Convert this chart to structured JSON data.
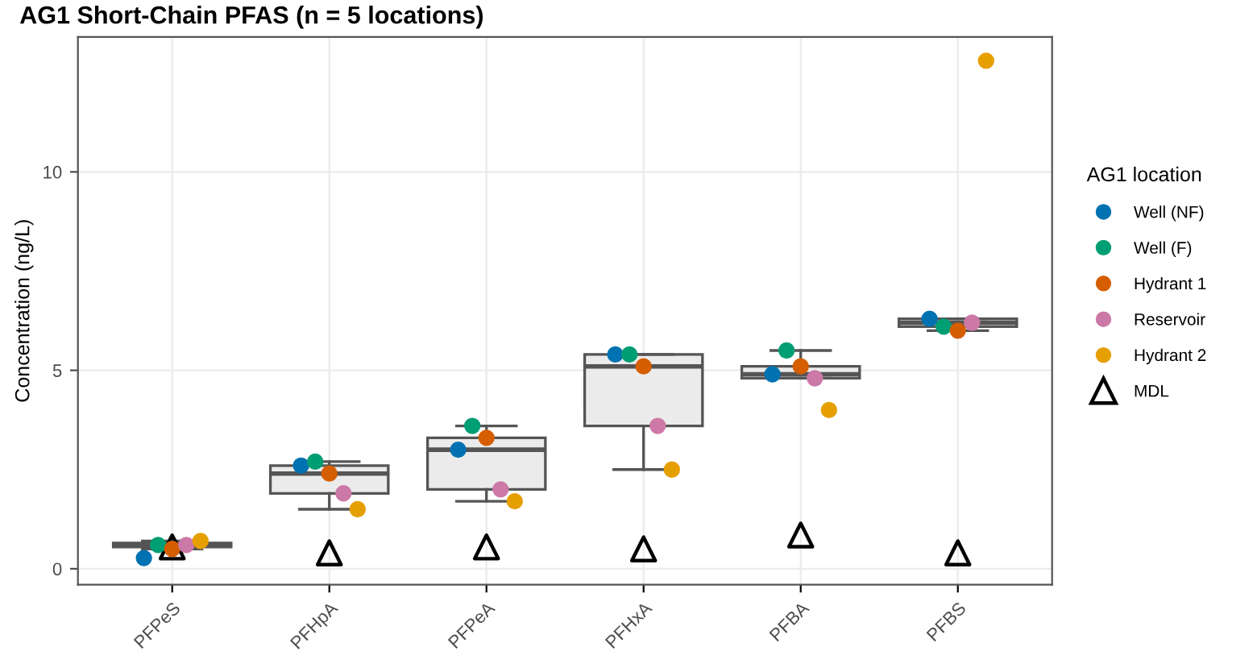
{
  "chart_data": {
    "type": "box",
    "title": "AG1 Short-Chain PFAS (n = 5 locations)",
    "ylabel": "Concentration (ng/L)",
    "legend_title": "AG1 location",
    "categories": [
      "PFPeS",
      "PFHpA",
      "PFPeA",
      "PFHxA",
      "PFBA",
      "PFBS"
    ],
    "boxes": [
      {
        "low": 0.5,
        "q1": 0.55,
        "median": 0.6,
        "q3": 0.65,
        "high": 0.7
      },
      {
        "low": 1.5,
        "q1": 1.9,
        "median": 2.4,
        "q3": 2.6,
        "high": 2.7
      },
      {
        "low": 1.7,
        "q1": 2.0,
        "median": 3.0,
        "q3": 3.3,
        "high": 3.6
      },
      {
        "low": 2.5,
        "q1": 3.6,
        "median": 5.1,
        "q3": 5.4,
        "high": 5.4
      },
      {
        "low": 4.8,
        "q1": 4.8,
        "median": 4.9,
        "q3": 5.1,
        "high": 5.5
      },
      {
        "low": 6.0,
        "q1": 6.1,
        "median": 6.2,
        "q3": 6.3,
        "high": 6.3
      }
    ],
    "series": [
      {
        "type": "scatter",
        "name": "Well (NF)",
        "color": "#0072b2",
        "marker": "circle",
        "x": [
          "PFPeS",
          "PFHpA",
          "PFPeA",
          "PFHxA",
          "PFBA",
          "PFBS"
        ],
        "values": [
          0.27,
          2.6,
          3.0,
          5.4,
          4.9,
          6.3
        ]
      },
      {
        "type": "scatter",
        "name": "Well (F)",
        "color": "#009e73",
        "marker": "circle",
        "x": [
          "PFPeS",
          "PFHpA",
          "PFPeA",
          "PFHxA",
          "PFBA",
          "PFBS"
        ],
        "values": [
          0.6,
          2.7,
          3.6,
          5.4,
          5.5,
          6.1
        ]
      },
      {
        "type": "scatter",
        "name": "Hydrant 1",
        "color": "#d55e00",
        "marker": "circle",
        "x": [
          "PFPeS",
          "PFHpA",
          "PFPeA",
          "PFHxA",
          "PFBA",
          "PFBS"
        ],
        "values": [
          0.5,
          2.4,
          3.3,
          5.1,
          5.1,
          6.0
        ]
      },
      {
        "type": "scatter",
        "name": "Reservoir",
        "color": "#cc79a7",
        "marker": "circle",
        "x": [
          "PFPeS",
          "PFHpA",
          "PFPeA",
          "PFHxA",
          "PFBA",
          "PFBS"
        ],
        "values": [
          0.6,
          1.9,
          2.0,
          3.6,
          4.8,
          6.2
        ]
      },
      {
        "type": "scatter",
        "name": "Hydrant 2",
        "color": "#e69f00",
        "marker": "circle",
        "x": [
          "PFPeS",
          "PFHpA",
          "PFPeA",
          "PFHxA",
          "PFBA",
          "PFBS"
        ],
        "values": [
          0.7,
          1.5,
          1.7,
          2.5,
          4.0,
          12.8
        ]
      },
      {
        "type": "scatter",
        "name": "MDL",
        "color": "#000000",
        "marker": "triangle",
        "x": [
          "PFPeS",
          "PFHpA",
          "PFPeA",
          "PFHxA",
          "PFBA",
          "PFBS"
        ],
        "values": [
          0.55,
          0.4,
          0.55,
          0.5,
          0.85,
          0.4
        ]
      }
    ],
    "ylim": [
      -0.4,
      13.4
    ],
    "yticks": [
      0,
      5,
      10
    ],
    "grid": true,
    "legend": "right"
  }
}
